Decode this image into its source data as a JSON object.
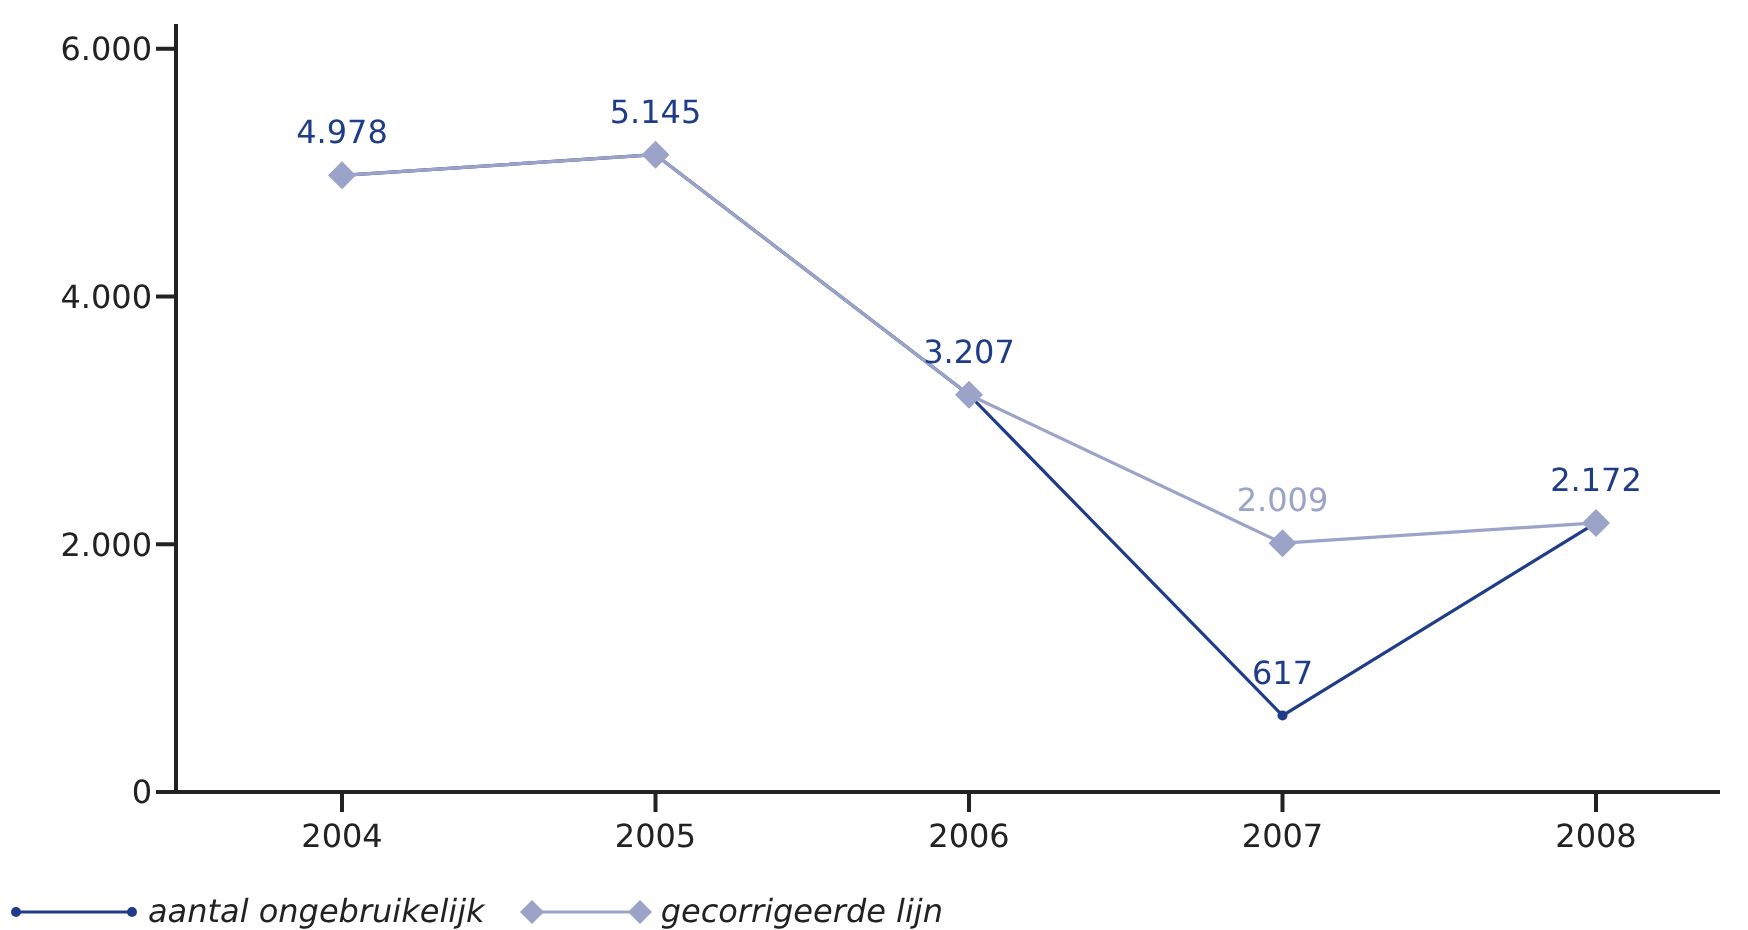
{
  "chart_data": {
    "type": "line",
    "categories": [
      "2004",
      "2005",
      "2006",
      "2007",
      "2008"
    ],
    "series": [
      {
        "name": "aantal ongebruikelijk",
        "color": "#1f3c88",
        "marker": "circle",
        "values": [
          4978,
          5145,
          3207,
          617,
          2172
        ],
        "value_labels": [
          "4.978",
          "5.145",
          "3.207",
          "617",
          "2.172"
        ]
      },
      {
        "name": "gecorrigeerde lijn",
        "color": "#9ba3c9",
        "marker": "diamond",
        "values": [
          4978,
          5145,
          3207,
          2009,
          2172
        ],
        "value_labels": [
          null,
          null,
          null,
          "2.009",
          null
        ]
      }
    ],
    "ylim": [
      0,
      6200
    ],
    "yticks": [
      {
        "value": 0,
        "label": "0"
      },
      {
        "value": 2000,
        "label": "2.000"
      },
      {
        "value": 4000,
        "label": "4.000"
      },
      {
        "value": 6000,
        "label": "6.000"
      }
    ],
    "grid": false,
    "legend": "bottom left"
  }
}
